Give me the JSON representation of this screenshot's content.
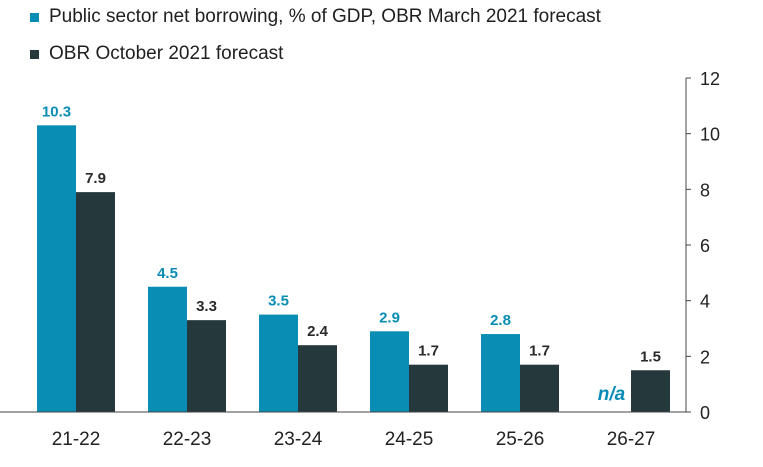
{
  "chart_data": {
    "type": "bar",
    "categories": [
      "21-22",
      "22-23",
      "23-24",
      "24-25",
      "25-26",
      "26-27"
    ],
    "series": [
      {
        "name": "Public sector net borrowing, % of GDP, OBR March 2021 forecast",
        "values": [
          10.3,
          4.5,
          3.5,
          2.9,
          2.8,
          null
        ],
        "labels": [
          "10.3",
          "4.5",
          "3.5",
          "2.9",
          "2.8",
          "n/a"
        ],
        "color": "#0a8db5"
      },
      {
        "name": "OBR October 2021 forecast",
        "values": [
          7.9,
          3.3,
          2.4,
          1.7,
          1.7,
          1.5
        ],
        "labels": [
          "7.9",
          "3.3",
          "2.4",
          "1.7",
          "1.7",
          "1.5"
        ],
        "color": "#25393d"
      }
    ],
    "ylim": [
      0,
      12
    ],
    "yticks": [
      "0",
      "2",
      "4",
      "6",
      "8",
      "10",
      "12"
    ],
    "y_axis_position": "right",
    "grid": false,
    "legend_position": "top-left"
  }
}
